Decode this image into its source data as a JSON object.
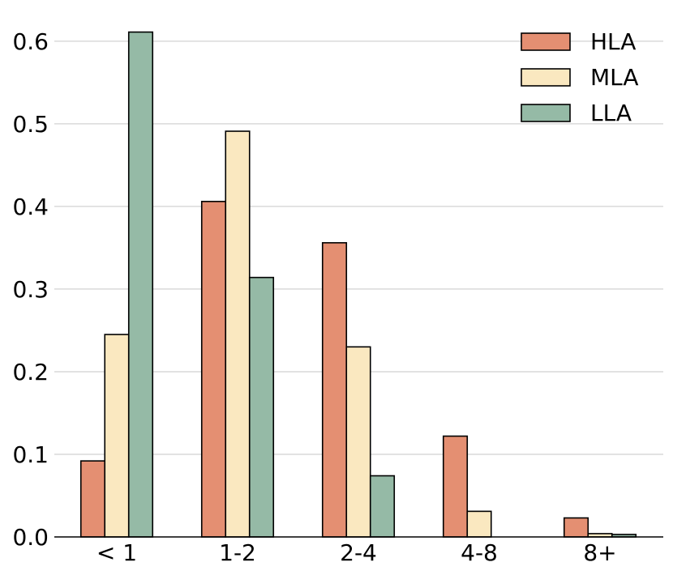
{
  "chart_data": {
    "type": "bar",
    "title": "",
    "xlabel": "",
    "ylabel": "",
    "categories": [
      "< 1",
      "1-2",
      "2-4",
      "4-8",
      "8+"
    ],
    "series": [
      {
        "name": "HLA",
        "color": "#e48f72",
        "values": [
          0.092,
          0.406,
          0.356,
          0.122,
          0.023
        ]
      },
      {
        "name": "MLA",
        "color": "#fae8c0",
        "values": [
          0.245,
          0.491,
          0.23,
          0.031,
          0.004
        ]
      },
      {
        "name": "LLA",
        "color": "#95baa6",
        "values": [
          0.611,
          0.314,
          0.074,
          0.0,
          0.003
        ]
      }
    ],
    "ylim": [
      0,
      0.64
    ],
    "yticks": [
      "0.0",
      "0.1",
      "0.2",
      "0.3",
      "0.4",
      "0.5",
      "0.6"
    ],
    "grid": "horizontal",
    "legend_position": "top-right"
  }
}
